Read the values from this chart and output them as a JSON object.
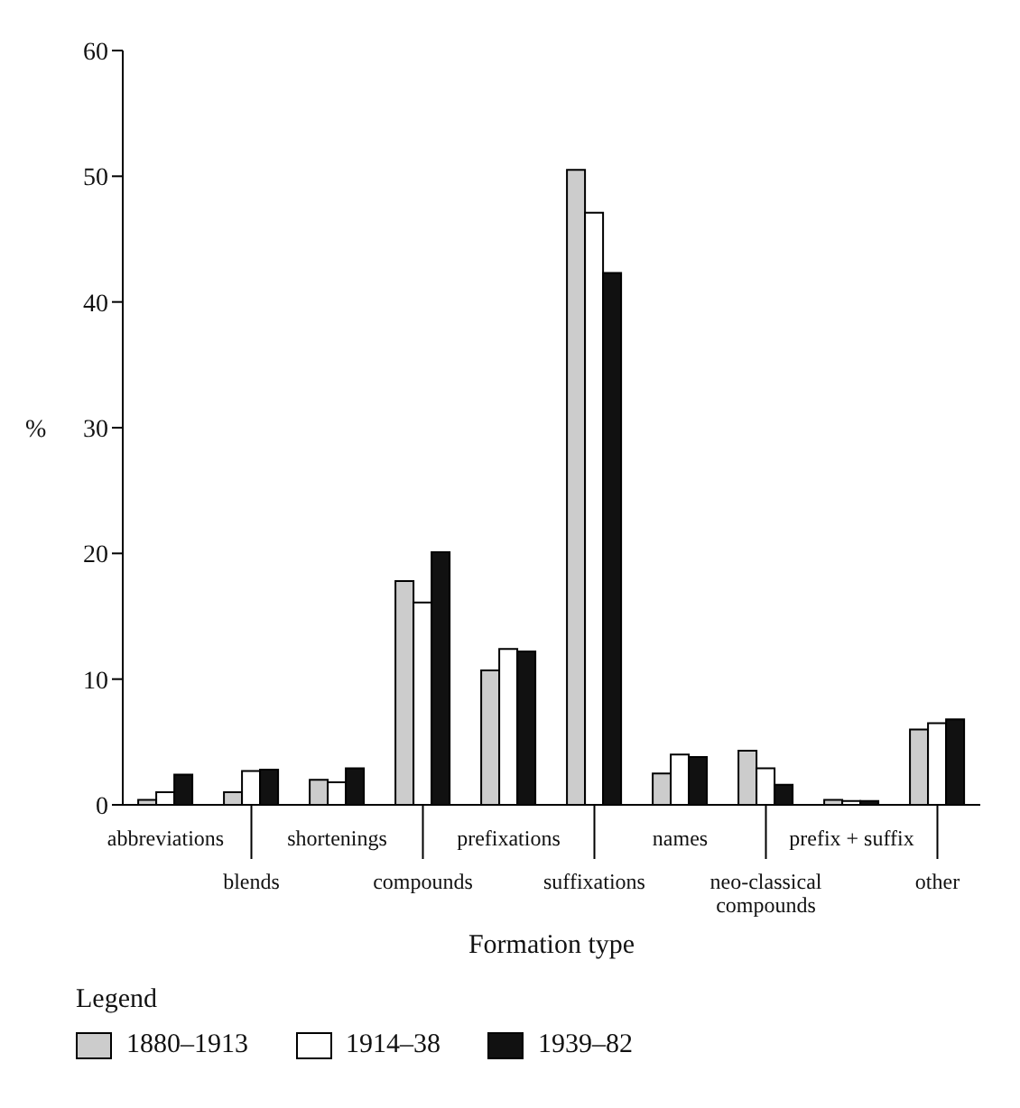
{
  "chart_data": {
    "type": "bar",
    "xlabel": "Formation type",
    "ylabel": "%",
    "legend_title": "Legend",
    "legend": "bottom left",
    "categories": [
      "abbreviations",
      "blends",
      "shortenings",
      "compounds",
      "prefixations",
      "suffixations",
      "names",
      "neo-classical compounds",
      "prefix + suffix",
      "other"
    ],
    "series": [
      {
        "name": "1880–1913",
        "color": "#cccccc",
        "values": [
          0.4,
          1.0,
          2.0,
          17.8,
          10.7,
          50.5,
          2.5,
          4.3,
          0.4,
          6.0
        ]
      },
      {
        "name": "1914–38",
        "color": "#ffffff",
        "values": [
          1.0,
          2.7,
          1.8,
          16.1,
          12.4,
          47.1,
          4.0,
          2.9,
          0.3,
          6.5
        ]
      },
      {
        "name": "1939–82",
        "color": "#111111",
        "values": [
          2.4,
          2.8,
          2.9,
          20.1,
          12.2,
          42.3,
          3.8,
          1.6,
          0.3,
          6.8
        ]
      }
    ],
    "ylim": [
      0,
      60
    ],
    "yticks": [
      0,
      10,
      20,
      30,
      40,
      50,
      60
    ]
  }
}
